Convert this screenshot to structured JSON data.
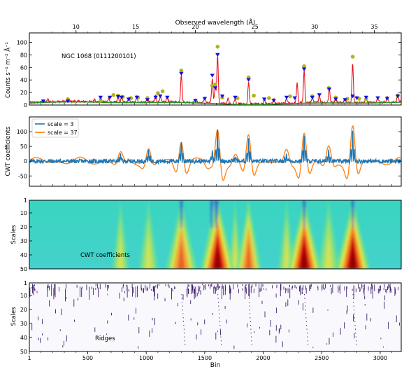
{
  "figure": {
    "top_axis_label": "Observed wavelength (Å)",
    "top_axis_ticks": [
      "10",
      "15",
      "20",
      "25",
      "30",
      "35"
    ],
    "bottom_axis_label": "Bin",
    "bottom_axis_ticks": [
      "1",
      "500",
      "1000",
      "1500",
      "2000",
      "2500",
      "3000"
    ]
  },
  "chart_data": [
    {
      "type": "line",
      "panel": "spectrum",
      "annotation": "NGC 1068 (0111200101)",
      "ylabel": "Counts s⁻¹ m⁻² Å⁻¹",
      "ylim": [
        0,
        115
      ],
      "yticks": [
        0,
        20,
        40,
        60,
        80,
        100
      ],
      "xlim_bins": [
        1,
        3180
      ],
      "series": [
        {
          "role": "spectrum",
          "color": "#e8141c"
        },
        {
          "role": "continuum",
          "color": "#2f8f2f"
        }
      ],
      "peaks": [
        {
          "bin": 1300,
          "value": 55
        },
        {
          "bin": 1565,
          "value": 47
        },
        {
          "bin": 1590,
          "value": 33
        },
        {
          "bin": 1610,
          "value": 93
        },
        {
          "bin": 1875,
          "value": 44
        },
        {
          "bin": 2290,
          "value": 38
        },
        {
          "bin": 2350,
          "value": 62
        },
        {
          "bin": 2565,
          "value": 27
        },
        {
          "bin": 2765,
          "value": 77
        },
        {
          "bin": 3150,
          "value": 15
        }
      ],
      "marker_colors": {
        "triangle": "#0a14e0",
        "circle": "#b5b21e"
      }
    },
    {
      "type": "line",
      "panel": "cwt",
      "ylabel": "CWT coefficients",
      "ylim": [
        -85,
        150
      ],
      "yticks": [
        -50,
        0,
        50,
        100
      ],
      "series": [
        {
          "name": "scale = 3",
          "color": "#1f77b4"
        },
        {
          "name": "scale = 37",
          "color": "#ff7f0e"
        }
      ],
      "legend": "top-left"
    },
    {
      "type": "heatmap",
      "panel": "cwt-map",
      "label": "CWT coefficients",
      "ylabel": "Scales",
      "yticks": [
        "1",
        "10",
        "20",
        "30",
        "40",
        "50"
      ],
      "cone_centers_bins": [
        1300,
        1590,
        1610,
        1875,
        2350,
        2765,
        2560,
        1020,
        780,
        1760,
        2200
      ]
    },
    {
      "type": "scatter",
      "panel": "ridges",
      "label": "Ridges",
      "ylabel": "Scales",
      "yticks": [
        "1",
        "10",
        "20",
        "30",
        "40",
        "50"
      ],
      "color": "#3f1f6f"
    }
  ]
}
